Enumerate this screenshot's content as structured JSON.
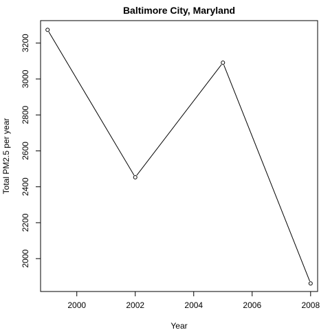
{
  "chart_data": {
    "type": "line",
    "title": "Baltimore City, Maryland",
    "xlabel": "Year",
    "ylabel": "Total PM2.5 per year",
    "x": [
      1999,
      2002,
      2005,
      2008
    ],
    "y": [
      3274,
      2453,
      3091,
      1862
    ],
    "xticks": [
      2000,
      2002,
      2004,
      2006,
      2008
    ],
    "yticks": [
      2000,
      2200,
      2400,
      2600,
      2800,
      3000,
      3200
    ],
    "xlim": [
      1998.76,
      2008.24
    ],
    "ylim": [
      1817,
      3325
    ],
    "markers": "open-circle",
    "line_color": "#000000",
    "grid": false,
    "legend": false
  }
}
